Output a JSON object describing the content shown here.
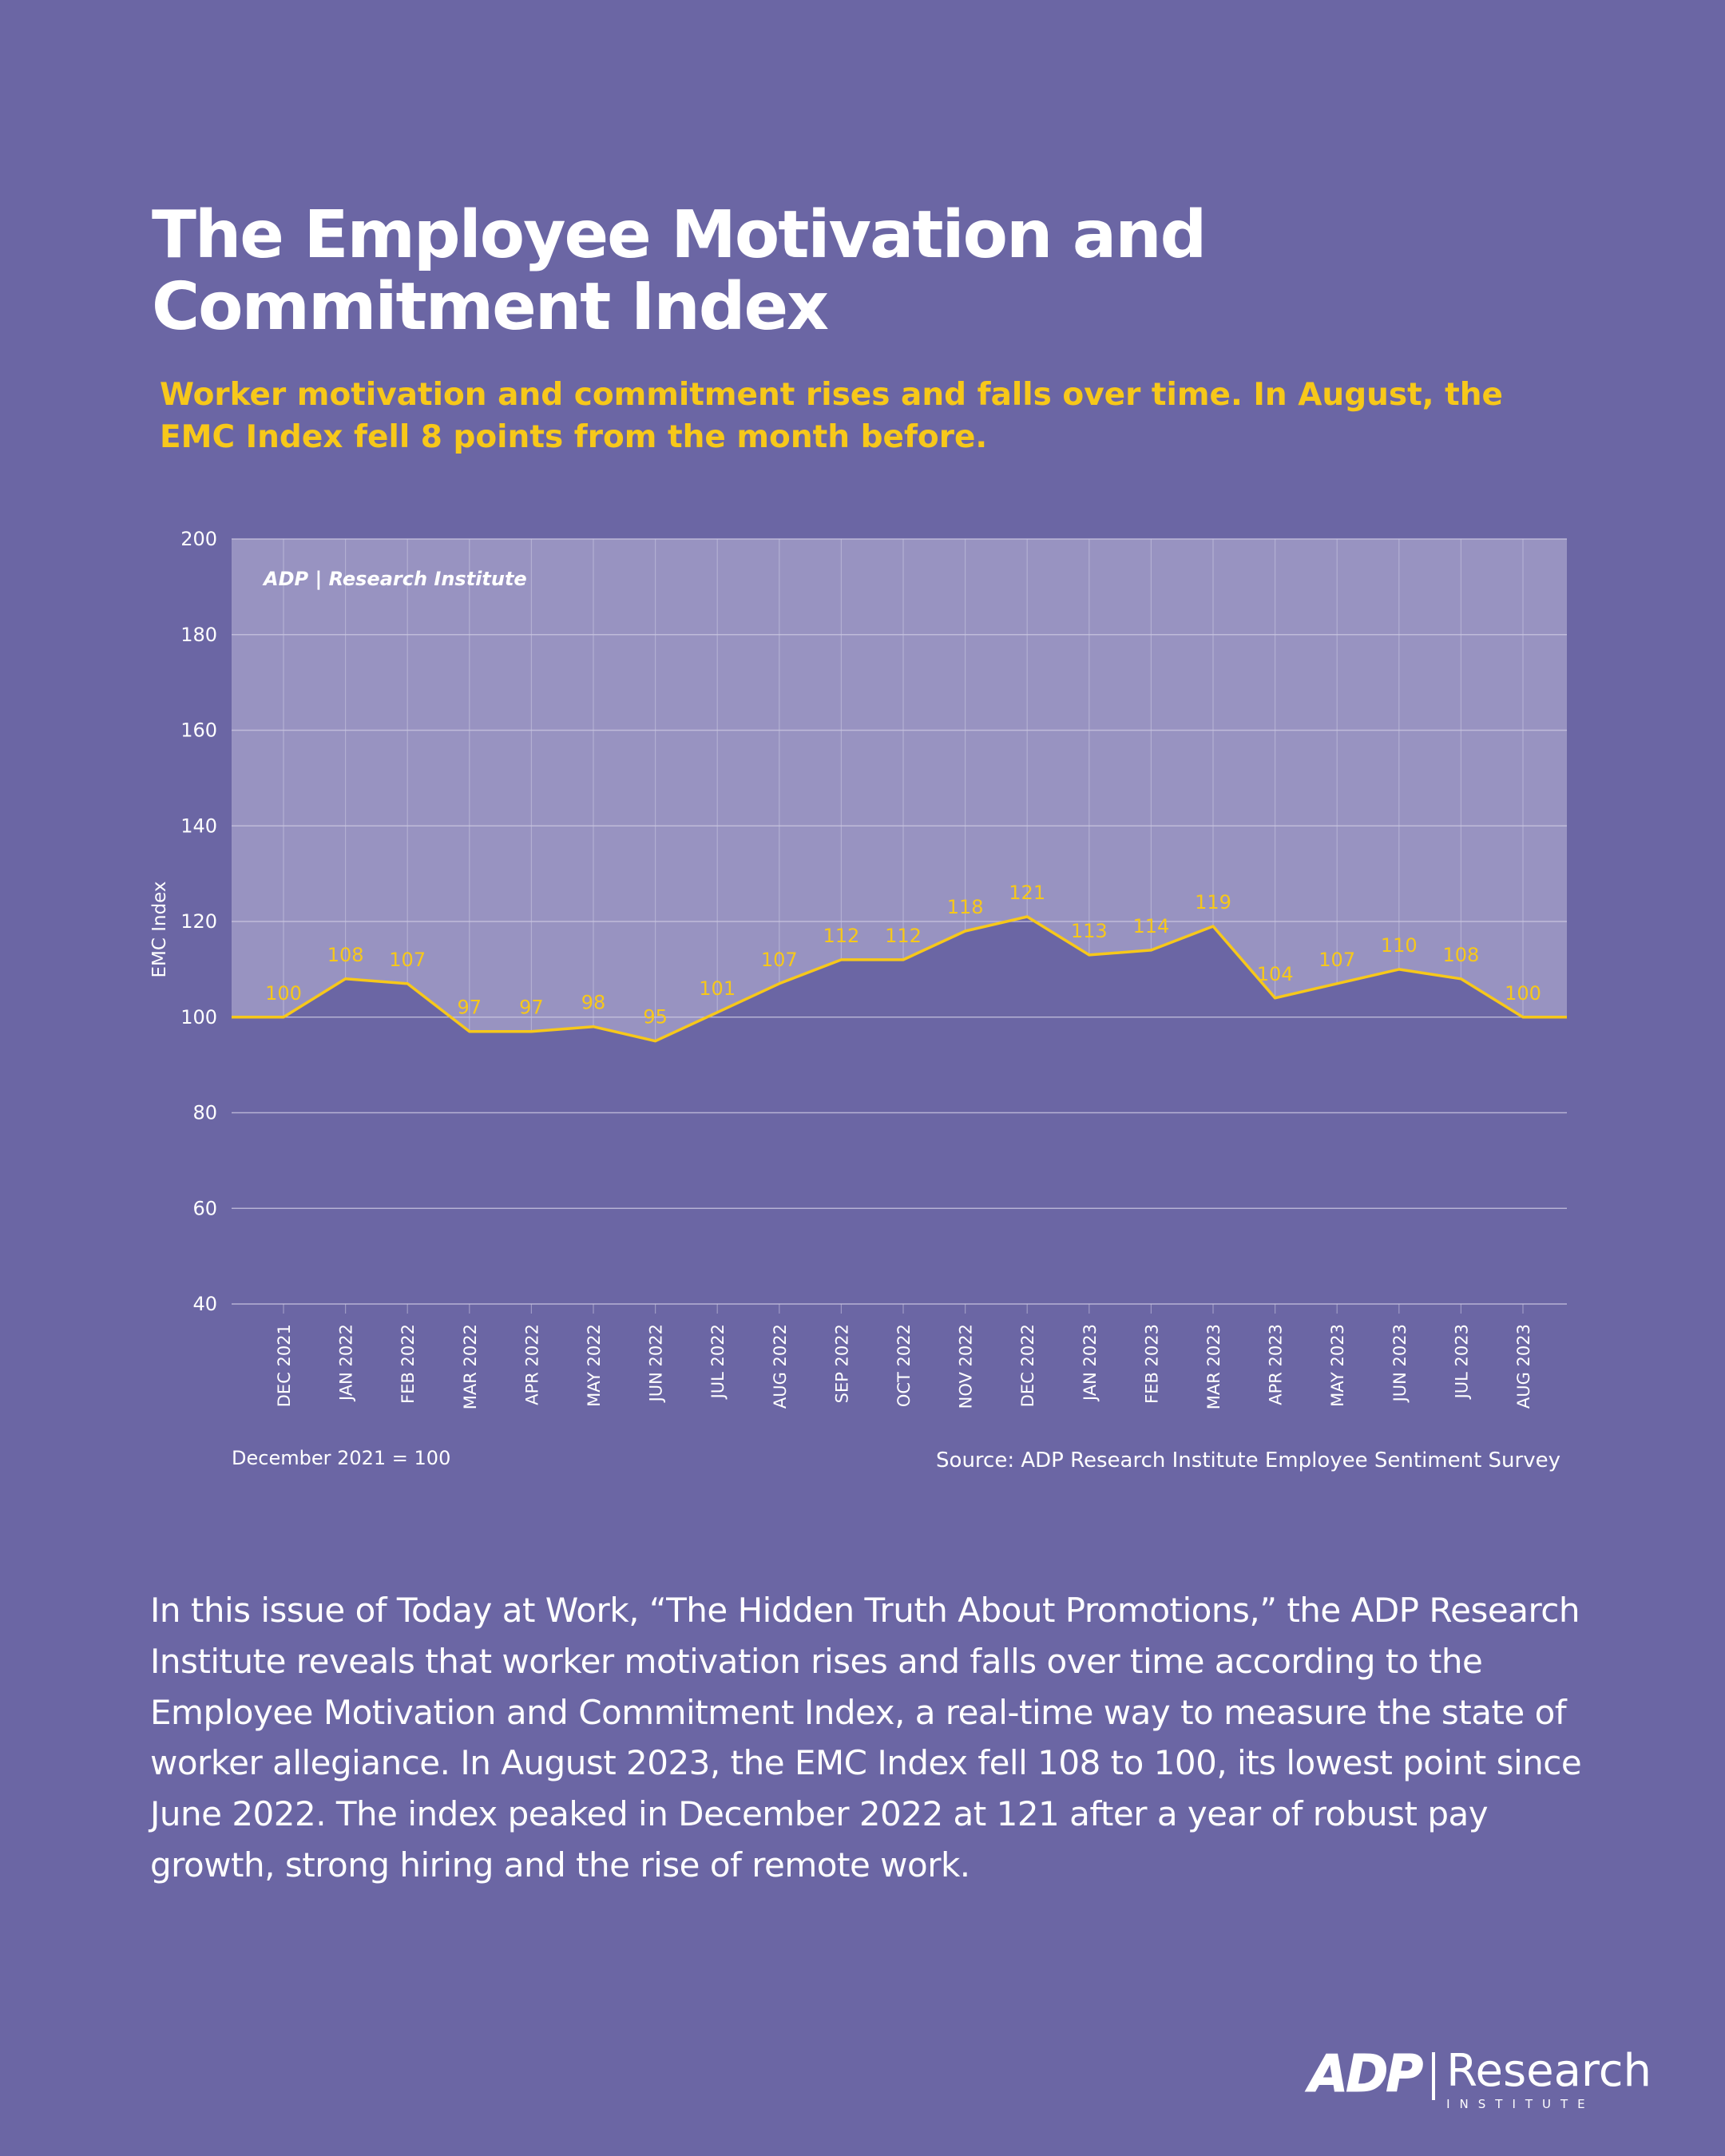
{
  "header": {
    "title": "The Employee Motivation and Commitment Index",
    "subtitle": "Worker motivation and commitment rises and falls over time. In August, the EMC Index fell 8 points from the month before."
  },
  "chart_data": {
    "type": "area",
    "title": "",
    "ylabel": "EMC Index",
    "xlabel": "",
    "ylim": [
      40,
      200
    ],
    "yticks": [
      40,
      60,
      80,
      100,
      120,
      140,
      160,
      180,
      200
    ],
    "grid": true,
    "watermark": "ADP | Research Institute",
    "categories": [
      "DEC 2021",
      "JAN 2022",
      "FEB 2022",
      "MAR 2022",
      "APR 2022",
      "MAY 2022",
      "JUN 2022",
      "JUL 2022",
      "AUG 2022",
      "SEP 2022",
      "OCT 2022",
      "NOV 2022",
      "DEC 2022",
      "JAN 2023",
      "FEB 2023",
      "MAR 2023",
      "APR 2023",
      "MAY 2023",
      "JUN 2023",
      "JUL 2023",
      "AUG 2023"
    ],
    "series": [
      {
        "name": "EMC Index",
        "values": [
          100,
          108,
          107,
          97,
          97,
          98,
          95,
          101,
          107,
          112,
          112,
          118,
          121,
          113,
          114,
          119,
          104,
          107,
          110,
          108,
          100
        ]
      }
    ],
    "colors": {
      "line": "#f7c81a",
      "label": "#f7c81a",
      "plot_bg": "#9893c1",
      "fill": "#6b66a4",
      "grid": "#c9c6e0"
    }
  },
  "footer": {
    "baseline_note": "December 2021 = 100",
    "source": "Source: ADP Research Institute Employee Sentiment Survey"
  },
  "body": {
    "paragraph": "In this issue of Today at Work, “The Hidden Truth About Promotions,” the ADP Research Institute reveals that worker motivation rises and falls over time according to the Employee Motivation and Commitment Index, a real-time way to measure the state of worker allegiance. In August 2023, the EMC Index fell 108 to 100, its lowest point since June 2022. The index peaked in December 2022 at 121 after a year of robust pay growth, strong hiring and the rise of remote work."
  },
  "logo": {
    "brand": "ADP",
    "research": "Research",
    "institute": "INSTITUTE"
  }
}
